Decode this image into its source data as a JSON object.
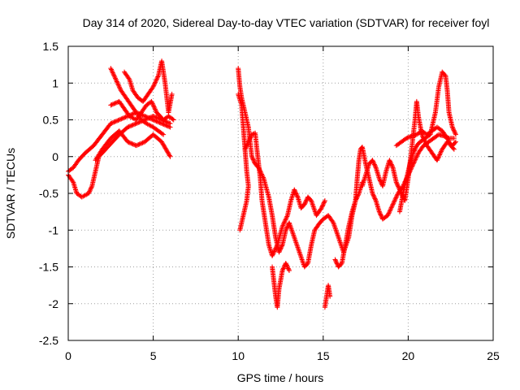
{
  "chart_data": {
    "type": "scatter",
    "title": "Day 314 of 2020, Sidereal Day-to-day VTEC variation (SDTVAR) for receiver foyl",
    "xlabel": "GPS time / hours",
    "ylabel": "SDTVAR / TECUs",
    "xlim": [
      0,
      25
    ],
    "ylim": [
      -2.5,
      1.5
    ],
    "xticks": [
      0,
      5,
      10,
      15,
      20,
      25
    ],
    "yticks": [
      -2.5,
      -2,
      -1.5,
      -1,
      -0.5,
      0,
      0.5,
      1,
      1.5
    ],
    "xtick_labels": [
      "0",
      "5",
      "10",
      "15",
      "20",
      "25"
    ],
    "ytick_labels": [
      "-2.5",
      "-2",
      "-1.5",
      "-1",
      "-0.5",
      "0",
      "0.5",
      "1",
      "1.5"
    ],
    "grid": true,
    "marker": "+",
    "marker_color": "#ff0000",
    "series": [
      {
        "name": "SDTVAR",
        "segments": [
          [
            [
              0.0,
              -0.2
            ],
            [
              0.3,
              -0.15
            ],
            [
              0.6,
              -0.05
            ],
            [
              1.0,
              0.05
            ],
            [
              1.5,
              0.15
            ],
            [
              2.0,
              0.3
            ],
            [
              2.5,
              0.45
            ],
            [
              3.0,
              0.5
            ],
            [
              3.5,
              0.55
            ],
            [
              4.0,
              0.6
            ],
            [
              4.5,
              0.55
            ],
            [
              5.0,
              0.5
            ],
            [
              5.5,
              0.45
            ],
            [
              6.0,
              0.4
            ]
          ],
          [
            [
              0.0,
              -0.25
            ],
            [
              0.3,
              -0.35
            ],
            [
              0.5,
              -0.5
            ],
            [
              0.8,
              -0.55
            ],
            [
              1.2,
              -0.5
            ],
            [
              1.4,
              -0.4
            ],
            [
              1.6,
              -0.2
            ],
            [
              1.8,
              0.0
            ],
            [
              2.2,
              0.1
            ],
            [
              2.6,
              0.2
            ],
            [
              3.0,
              0.3
            ],
            [
              3.5,
              0.4
            ],
            [
              4.0,
              0.45
            ],
            [
              4.5,
              0.5
            ],
            [
              5.0,
              0.55
            ],
            [
              5.5,
              0.5
            ],
            [
              6.0,
              0.45
            ]
          ],
          [
            [
              1.6,
              -0.05
            ],
            [
              2.0,
              0.1
            ],
            [
              2.5,
              0.25
            ],
            [
              3.0,
              0.35
            ],
            [
              3.5,
              0.2
            ],
            [
              4.0,
              0.15
            ],
            [
              4.5,
              0.2
            ],
            [
              5.0,
              0.3
            ],
            [
              5.5,
              0.2
            ],
            [
              6.0,
              0.0
            ]
          ],
          [
            [
              2.5,
              1.2
            ],
            [
              2.8,
              1.05
            ],
            [
              3.1,
              0.9
            ],
            [
              3.4,
              0.8
            ],
            [
              3.7,
              0.7
            ],
            [
              4.0,
              0.6
            ],
            [
              4.3,
              0.5
            ],
            [
              4.6,
              0.45
            ],
            [
              5.0,
              0.4
            ],
            [
              5.3,
              0.35
            ],
            [
              5.6,
              0.3
            ]
          ],
          [
            [
              3.3,
              1.15
            ],
            [
              3.6,
              1.05
            ],
            [
              3.8,
              0.9
            ],
            [
              4.1,
              0.8
            ],
            [
              4.4,
              0.75
            ],
            [
              4.7,
              0.85
            ],
            [
              5.0,
              0.95
            ],
            [
              5.3,
              1.1
            ],
            [
              5.5,
              1.3
            ],
            [
              5.7,
              1.0
            ],
            [
              5.9,
              0.6
            ],
            [
              6.1,
              0.85
            ]
          ],
          [
            [
              2.5,
              0.7
            ],
            [
              3.0,
              0.75
            ],
            [
              3.3,
              0.65
            ],
            [
              3.6,
              0.55
            ],
            [
              4.0,
              0.5
            ],
            [
              4.3,
              0.6
            ],
            [
              4.6,
              0.7
            ],
            [
              4.9,
              0.75
            ],
            [
              5.2,
              0.6
            ],
            [
              5.6,
              0.5
            ],
            [
              5.9,
              0.55
            ],
            [
              6.2,
              0.5
            ]
          ],
          [
            [
              10.0,
              1.2
            ],
            [
              10.1,
              0.95
            ],
            [
              10.2,
              0.8
            ],
            [
              10.4,
              0.6
            ],
            [
              10.6,
              0.4
            ],
            [
              10.7,
              0.2
            ],
            [
              10.8,
              0.0
            ],
            [
              11.0,
              -0.1
            ],
            [
              11.2,
              -0.15
            ],
            [
              11.5,
              -0.3
            ],
            [
              11.8,
              -0.55
            ],
            [
              12.0,
              -0.8
            ],
            [
              12.2,
              -1.1
            ],
            [
              12.4,
              -1.3
            ],
            [
              12.6,
              -1.2
            ],
            [
              12.8,
              -1.0
            ],
            [
              13.0,
              -0.9
            ],
            [
              13.3,
              -1.1
            ],
            [
              13.6,
              -1.3
            ],
            [
              13.9,
              -1.5
            ],
            [
              14.1,
              -1.45
            ],
            [
              14.3,
              -1.2
            ],
            [
              14.5,
              -1.0
            ],
            [
              14.8,
              -0.9
            ],
            [
              15.0,
              -0.85
            ],
            [
              15.3,
              -0.8
            ],
            [
              15.6,
              -0.9
            ],
            [
              15.9,
              -1.1
            ],
            [
              16.2,
              -1.3
            ],
            [
              16.5,
              -1.1
            ],
            [
              16.7,
              -0.8
            ],
            [
              16.9,
              -0.6
            ],
            [
              17.1,
              -0.5
            ],
            [
              17.3,
              -0.35
            ]
          ],
          [
            [
              10.0,
              0.85
            ],
            [
              10.2,
              0.7
            ],
            [
              10.3,
              0.4
            ],
            [
              10.4,
              0.1
            ],
            [
              10.5,
              -0.2
            ],
            [
              10.6,
              -0.4
            ],
            [
              10.5,
              -0.6
            ],
            [
              10.3,
              -0.8
            ],
            [
              10.1,
              -1.0
            ]
          ],
          [
            [
              10.4,
              0.1
            ],
            [
              10.6,
              0.2
            ],
            [
              10.8,
              0.3
            ],
            [
              11.0,
              0.32
            ],
            [
              11.1,
              0.1
            ],
            [
              11.2,
              -0.1
            ],
            [
              11.3,
              -0.3
            ],
            [
              11.4,
              -0.6
            ],
            [
              11.6,
              -0.9
            ],
            [
              11.8,
              -1.2
            ],
            [
              12.0,
              -1.35
            ],
            [
              12.3,
              -1.2
            ],
            [
              12.6,
              -0.95
            ],
            [
              12.9,
              -0.8
            ],
            [
              13.1,
              -0.6
            ],
            [
              13.3,
              -0.45
            ],
            [
              13.5,
              -0.55
            ],
            [
              13.7,
              -0.7
            ],
            [
              13.9,
              -0.65
            ],
            [
              14.1,
              -0.55
            ],
            [
              14.3,
              -0.6
            ],
            [
              14.6,
              -0.8
            ],
            [
              14.9,
              -0.7
            ],
            [
              15.1,
              -0.6
            ]
          ],
          [
            [
              12.0,
              -1.5
            ],
            [
              12.1,
              -1.7
            ],
            [
              12.2,
              -1.9
            ],
            [
              12.3,
              -2.05
            ],
            [
              12.4,
              -1.8
            ],
            [
              12.6,
              -1.55
            ],
            [
              12.8,
              -1.45
            ],
            [
              13.0,
              -1.55
            ]
          ],
          [
            [
              15.1,
              -2.05
            ],
            [
              15.2,
              -1.9
            ],
            [
              15.3,
              -1.75
            ],
            [
              15.4,
              -1.9
            ]
          ],
          [
            [
              15.7,
              -1.4
            ],
            [
              15.9,
              -1.5
            ],
            [
              16.1,
              -1.45
            ],
            [
              16.3,
              -1.2
            ],
            [
              16.5,
              -0.95
            ],
            [
              16.7,
              -0.75
            ],
            [
              16.9,
              -0.6
            ],
            [
              17.0,
              -0.3
            ],
            [
              17.1,
              -0.05
            ],
            [
              17.2,
              0.1
            ],
            [
              17.3,
              0.13
            ],
            [
              17.5,
              -0.1
            ],
            [
              17.7,
              -0.3
            ],
            [
              17.9,
              -0.5
            ],
            [
              18.1,
              -0.6
            ],
            [
              18.3,
              -0.75
            ],
            [
              18.5,
              -0.85
            ],
            [
              18.8,
              -0.8
            ],
            [
              19.1,
              -0.65
            ],
            [
              19.4,
              -0.5
            ],
            [
              19.7,
              -0.4
            ],
            [
              20.0,
              -0.25
            ],
            [
              20.3,
              -0.1
            ],
            [
              20.6,
              0.05
            ],
            [
              20.9,
              0.15
            ],
            [
              21.2,
              0.2
            ],
            [
              21.5,
              0.25
            ],
            [
              21.8,
              0.3
            ],
            [
              22.1,
              0.28
            ],
            [
              22.4,
              0.25
            ],
            [
              22.7,
              0.25
            ]
          ],
          [
            [
              17.3,
              -0.4
            ],
            [
              17.5,
              -0.25
            ],
            [
              17.7,
              -0.1
            ],
            [
              17.9,
              -0.05
            ],
            [
              18.1,
              -0.15
            ],
            [
              18.3,
              -0.3
            ],
            [
              18.5,
              -0.4
            ],
            [
              18.7,
              -0.2
            ],
            [
              18.9,
              -0.05
            ],
            [
              19.1,
              -0.15
            ],
            [
              19.3,
              -0.35
            ],
            [
              19.5,
              -0.45
            ],
            [
              19.8,
              -0.6
            ],
            [
              20.0,
              -0.3
            ],
            [
              20.2,
              0.1
            ],
            [
              20.4,
              0.5
            ],
            [
              20.5,
              0.75
            ],
            [
              20.6,
              0.55
            ],
            [
              20.8,
              0.3
            ],
            [
              21.1,
              0.15
            ],
            [
              21.4,
              0.05
            ],
            [
              21.7,
              -0.05
            ],
            [
              22.0,
              0.1
            ],
            [
              22.3,
              0.2
            ],
            [
              22.6,
              0.15
            ],
            [
              22.8,
              0.2
            ]
          ],
          [
            [
              19.5,
              -0.75
            ],
            [
              19.7,
              -0.5
            ],
            [
              19.9,
              -0.3
            ],
            [
              20.1,
              -0.1
            ],
            [
              20.3,
              0.05
            ],
            [
              20.5,
              0.15
            ],
            [
              20.7,
              0.2
            ],
            [
              21.0,
              0.25
            ],
            [
              21.3,
              0.3
            ],
            [
              21.6,
              0.6
            ],
            [
              21.8,
              0.95
            ],
            [
              22.0,
              1.15
            ],
            [
              22.2,
              1.1
            ],
            [
              22.3,
              0.9
            ],
            [
              22.4,
              0.6
            ],
            [
              22.6,
              0.4
            ],
            [
              22.8,
              0.3
            ]
          ],
          [
            [
              19.3,
              0.15
            ],
            [
              19.6,
              0.2
            ],
            [
              19.9,
              0.25
            ],
            [
              20.2,
              0.28
            ],
            [
              20.5,
              0.3
            ],
            [
              20.8,
              0.35
            ],
            [
              21.1,
              0.3
            ],
            [
              21.4,
              0.35
            ],
            [
              21.7,
              0.4
            ],
            [
              22.0,
              0.35
            ],
            [
              22.3,
              0.25
            ],
            [
              22.5,
              0.15
            ],
            [
              22.7,
              0.1
            ]
          ]
        ]
      }
    ]
  }
}
